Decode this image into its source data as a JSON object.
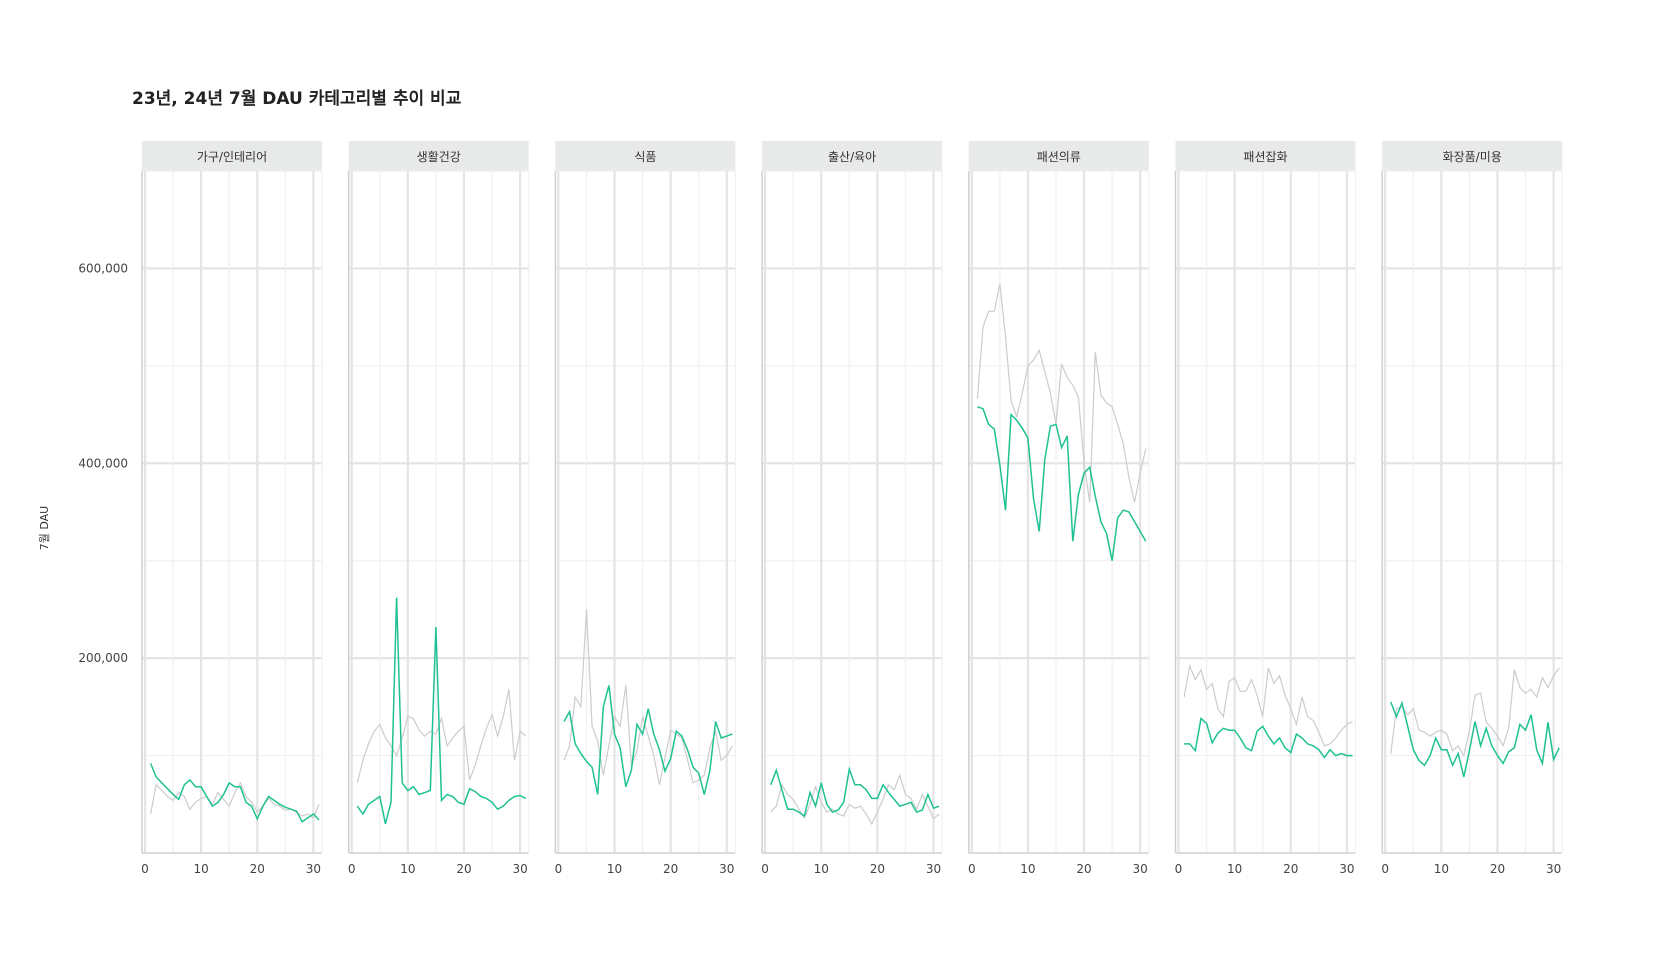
{
  "title": "23년, 24년 7월 DAU 카테고리별 추이 비교",
  "y_axis_title": "7월 DAU",
  "colors": {
    "y2024": "#1fc193",
    "y2023": "#cccccc",
    "strip": "#e8e9e9",
    "grid": "#ececec",
    "axis": "#cfcfcf"
  },
  "chart_data": {
    "type": "line",
    "ylabel": "7월 DAU",
    "xlim": [
      0,
      31
    ],
    "ylim": [
      0,
      700000
    ],
    "y_ticks": [
      200000,
      400000,
      600000
    ],
    "y_tick_labels": [
      "200,000",
      "400,000",
      "600,000"
    ],
    "x_ticks": [
      0,
      10,
      20,
      30
    ],
    "x_tick_labels": [
      "0",
      "10",
      "20",
      "30"
    ],
    "facets": [
      {
        "name": "가구/인테리어",
        "y2024": [
          92000,
          78000,
          72000,
          66000,
          60000,
          55000,
          70000,
          75000,
          68000,
          68000,
          58000,
          48000,
          52000,
          60000,
          72000,
          68000,
          68000,
          52000,
          48000,
          35000,
          48000,
          58000,
          54000,
          50000,
          47000,
          45000,
          43000,
          32000,
          36000,
          40000,
          34000
        ],
        "y2023": [
          40000,
          70000,
          64000,
          58000,
          54000,
          62000,
          58000,
          45000,
          52000,
          56000,
          58000,
          50000,
          62000,
          55000,
          48000,
          62000,
          72000,
          58000,
          52000,
          42000,
          48000,
          56000,
          50000,
          48000,
          44000,
          45000,
          42000,
          38000,
          40000,
          36000,
          50000
        ]
      },
      {
        "name": "생활건강",
        "y2024": [
          48000,
          40000,
          50000,
          54000,
          58000,
          30000,
          52000,
          262000,
          72000,
          64000,
          68000,
          60000,
          62000,
          64000,
          232000,
          54000,
          60000,
          58000,
          52000,
          50000,
          66000,
          63000,
          58000,
          56000,
          52000,
          45000,
          48000,
          54000,
          58000,
          59000,
          56000
        ],
        "y2023": [
          72000,
          95000,
          112000,
          125000,
          132000,
          118000,
          110000,
          100000,
          118000,
          140000,
          138000,
          126000,
          120000,
          125000,
          122000,
          138000,
          110000,
          118000,
          125000,
          130000,
          75000,
          90000,
          110000,
          128000,
          142000,
          120000,
          140000,
          168000,
          95000,
          125000,
          120000
        ]
      },
      {
        "name": "식품",
        "y2024": [
          135000,
          145000,
          112000,
          102000,
          94000,
          88000,
          60000,
          150000,
          172000,
          122000,
          108000,
          68000,
          85000,
          132000,
          122000,
          148000,
          122000,
          106000,
          84000,
          97000,
          125000,
          120000,
          106000,
          88000,
          82000,
          60000,
          85000,
          135000,
          118000,
          120000,
          122000
        ],
        "y2023": [
          95000,
          110000,
          160000,
          150000,
          250000,
          130000,
          115000,
          80000,
          110000,
          140000,
          130000,
          172000,
          90000,
          105000,
          140000,
          120000,
          100000,
          70000,
          98000,
          126000,
          122000,
          118000,
          96000,
          72000,
          75000,
          80000,
          108000,
          125000,
          95000,
          100000,
          110000
        ]
      },
      {
        "name": "출산/육아",
        "y2024": [
          70000,
          85000,
          65000,
          45000,
          45000,
          42000,
          38000,
          62000,
          48000,
          72000,
          50000,
          42000,
          44000,
          52000,
          86000,
          70000,
          70000,
          65000,
          56000,
          56000,
          70000,
          62000,
          55000,
          48000,
          50000,
          52000,
          42000,
          44000,
          60000,
          46000,
          48000
        ],
        "y2023": [
          42000,
          48000,
          70000,
          60000,
          55000,
          45000,
          36000,
          50000,
          68000,
          52000,
          42000,
          45000,
          40000,
          38000,
          50000,
          46000,
          48000,
          40000,
          30000,
          42000,
          55000,
          70000,
          65000,
          80000,
          60000,
          56000,
          45000,
          60000,
          48000,
          35000,
          40000
        ]
      },
      {
        "name": "패션의류",
        "y2024": [
          458000,
          456000,
          440000,
          435000,
          398000,
          352000,
          450000,
          444000,
          436000,
          426000,
          364000,
          330000,
          404000,
          438000,
          440000,
          416000,
          428000,
          320000,
          368000,
          390000,
          396000,
          366000,
          340000,
          328000,
          300000,
          344000,
          352000,
          350000,
          340000,
          330000,
          320000
        ],
        "y2023": [
          466000,
          540000,
          556000,
          556000,
          584000,
          530000,
          464000,
          448000,
          472000,
          500000,
          506000,
          516000,
          494000,
          472000,
          440000,
          502000,
          488000,
          480000,
          468000,
          400000,
          360000,
          514000,
          470000,
          462000,
          458000,
          440000,
          420000,
          385000,
          360000,
          390000,
          415000
        ],
        "note": ""
      },
      {
        "name": "패션잡화",
        "y2024": [
          112000,
          112000,
          105000,
          138000,
          133000,
          113000,
          123000,
          128000,
          126000,
          126000,
          118000,
          108000,
          105000,
          125000,
          130000,
          120000,
          112000,
          118000,
          108000,
          103000,
          122000,
          118000,
          112000,
          110000,
          106000,
          98000,
          106000,
          100000,
          102000,
          100000,
          100000
        ],
        "y2023": [
          160000,
          192000,
          178000,
          188000,
          168000,
          174000,
          148000,
          140000,
          176000,
          180000,
          166000,
          166000,
          178000,
          162000,
          140000,
          190000,
          174000,
          182000,
          162000,
          148000,
          132000,
          160000,
          140000,
          136000,
          124000,
          110000,
          112000,
          118000,
          126000,
          132000,
          135000
        ]
      },
      {
        "name": "화장품/미용",
        "y2024": [
          155000,
          140000,
          154000,
          130000,
          106000,
          95000,
          90000,
          100000,
          118000,
          106000,
          106000,
          90000,
          102000,
          78000,
          105000,
          135000,
          110000,
          128000,
          110000,
          100000,
          92000,
          104000,
          108000,
          132000,
          126000,
          142000,
          106000,
          92000,
          134000,
          96000,
          108000
        ],
        "y2023": [
          102000,
          148000,
          150000,
          142000,
          148000,
          126000,
          124000,
          120000,
          124000,
          126000,
          122000,
          105000,
          110000,
          100000,
          125000,
          162000,
          164000,
          134000,
          128000,
          120000,
          110000,
          128000,
          188000,
          170000,
          164000,
          168000,
          160000,
          180000,
          170000,
          182000,
          190000
        ]
      }
    ]
  }
}
